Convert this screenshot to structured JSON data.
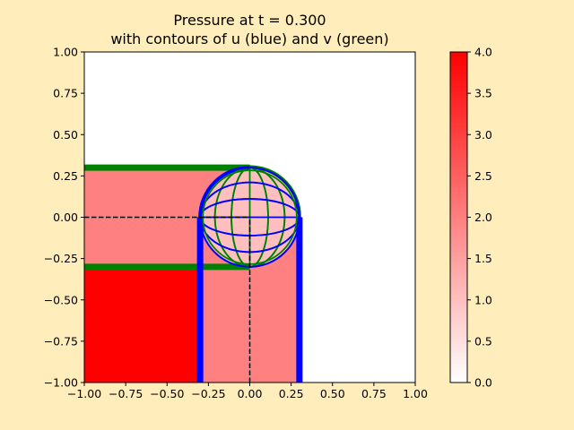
{
  "chart_data": {
    "type": "heatmap",
    "title_line1": "Pressure at t = 0.300",
    "title_line2": "with contours of u (blue) and v (green)",
    "xlabel": "",
    "ylabel": "",
    "xlim": [
      -1.0,
      1.0
    ],
    "ylim": [
      -1.0,
      1.0
    ],
    "x_ticks": [
      "−1.00",
      "−0.75",
      "−0.50",
      "−0.25",
      "0.00",
      "0.25",
      "0.50",
      "0.75",
      "1.00"
    ],
    "y_ticks": [
      "−1.00",
      "−0.75",
      "−0.50",
      "−0.25",
      "0.00",
      "0.25",
      "0.50",
      "0.75",
      "1.00"
    ],
    "grid": false,
    "time": 0.3,
    "pressure_regions": [
      {
        "name": "high-pressure-region",
        "value": 4.0,
        "polygon": [
          [
            -1.0,
            -1.0
          ],
          [
            -0.3,
            -1.0
          ],
          [
            -0.3,
            -0.3
          ],
          [
            -1.0,
            -0.3
          ]
        ]
      },
      {
        "name": "horizontal-pressure-band",
        "value": 2.0,
        "polygon": [
          [
            -1.0,
            -0.3
          ],
          [
            0.0,
            -0.3
          ],
          [
            0.0,
            0.3
          ],
          [
            -1.0,
            0.3
          ]
        ]
      },
      {
        "name": "vertical-pressure-band",
        "value": 2.0,
        "polygon": [
          [
            -0.3,
            -1.0
          ],
          [
            0.3,
            -1.0
          ],
          [
            0.3,
            0.0
          ],
          [
            -0.3,
            0.0
          ]
        ]
      },
      {
        "name": "rarefaction-disc",
        "value": 1.0,
        "circle": {
          "cx": 0.0,
          "cy": 0.0,
          "r": 0.3
        }
      }
    ],
    "u_contours": {
      "color": "#0000ff",
      "thick_lines": [
        {
          "name": "u-front-left",
          "points": [
            [
              -0.3,
              -1.0
            ],
            [
              -0.3,
              0.0
            ]
          ]
        },
        {
          "name": "u-front-right",
          "points": [
            [
              0.3,
              -1.0
            ],
            [
              0.3,
              0.0
            ]
          ]
        }
      ],
      "disc_levels_y": [
        -0.2,
        -0.1,
        0.0,
        0.1,
        0.2
      ]
    },
    "v_contours": {
      "color": "#008000",
      "thick_lines": [
        {
          "name": "v-front-top",
          "points": [
            [
              -1.0,
              0.3
            ],
            [
              0.0,
              0.3
            ]
          ]
        },
        {
          "name": "v-front-bottom",
          "points": [
            [
              -1.0,
              -0.3
            ],
            [
              0.0,
              -0.3
            ]
          ]
        }
      ],
      "disc_levels_x": [
        -0.2,
        -0.1,
        0.0,
        0.1,
        0.2
      ]
    },
    "dashed_lines": [
      {
        "name": "dashed-line-horizontal",
        "points": [
          [
            -1.0,
            0.0
          ],
          [
            0.0,
            0.0
          ]
        ]
      },
      {
        "name": "dashed-line-vertical",
        "points": [
          [
            0.0,
            -1.0
          ],
          [
            0.0,
            0.0
          ]
        ]
      }
    ],
    "colorbar": {
      "min": 0.0,
      "max": 4.0,
      "colors": [
        "#ffffff",
        "#ff0000"
      ],
      "ticks": [
        "0.0",
        "0.5",
        "1.0",
        "1.5",
        "2.0",
        "2.5",
        "3.0",
        "3.5",
        "4.0"
      ],
      "tick_values": [
        0.0,
        0.5,
        1.0,
        1.5,
        2.0,
        2.5,
        3.0,
        3.5,
        4.0
      ]
    }
  }
}
